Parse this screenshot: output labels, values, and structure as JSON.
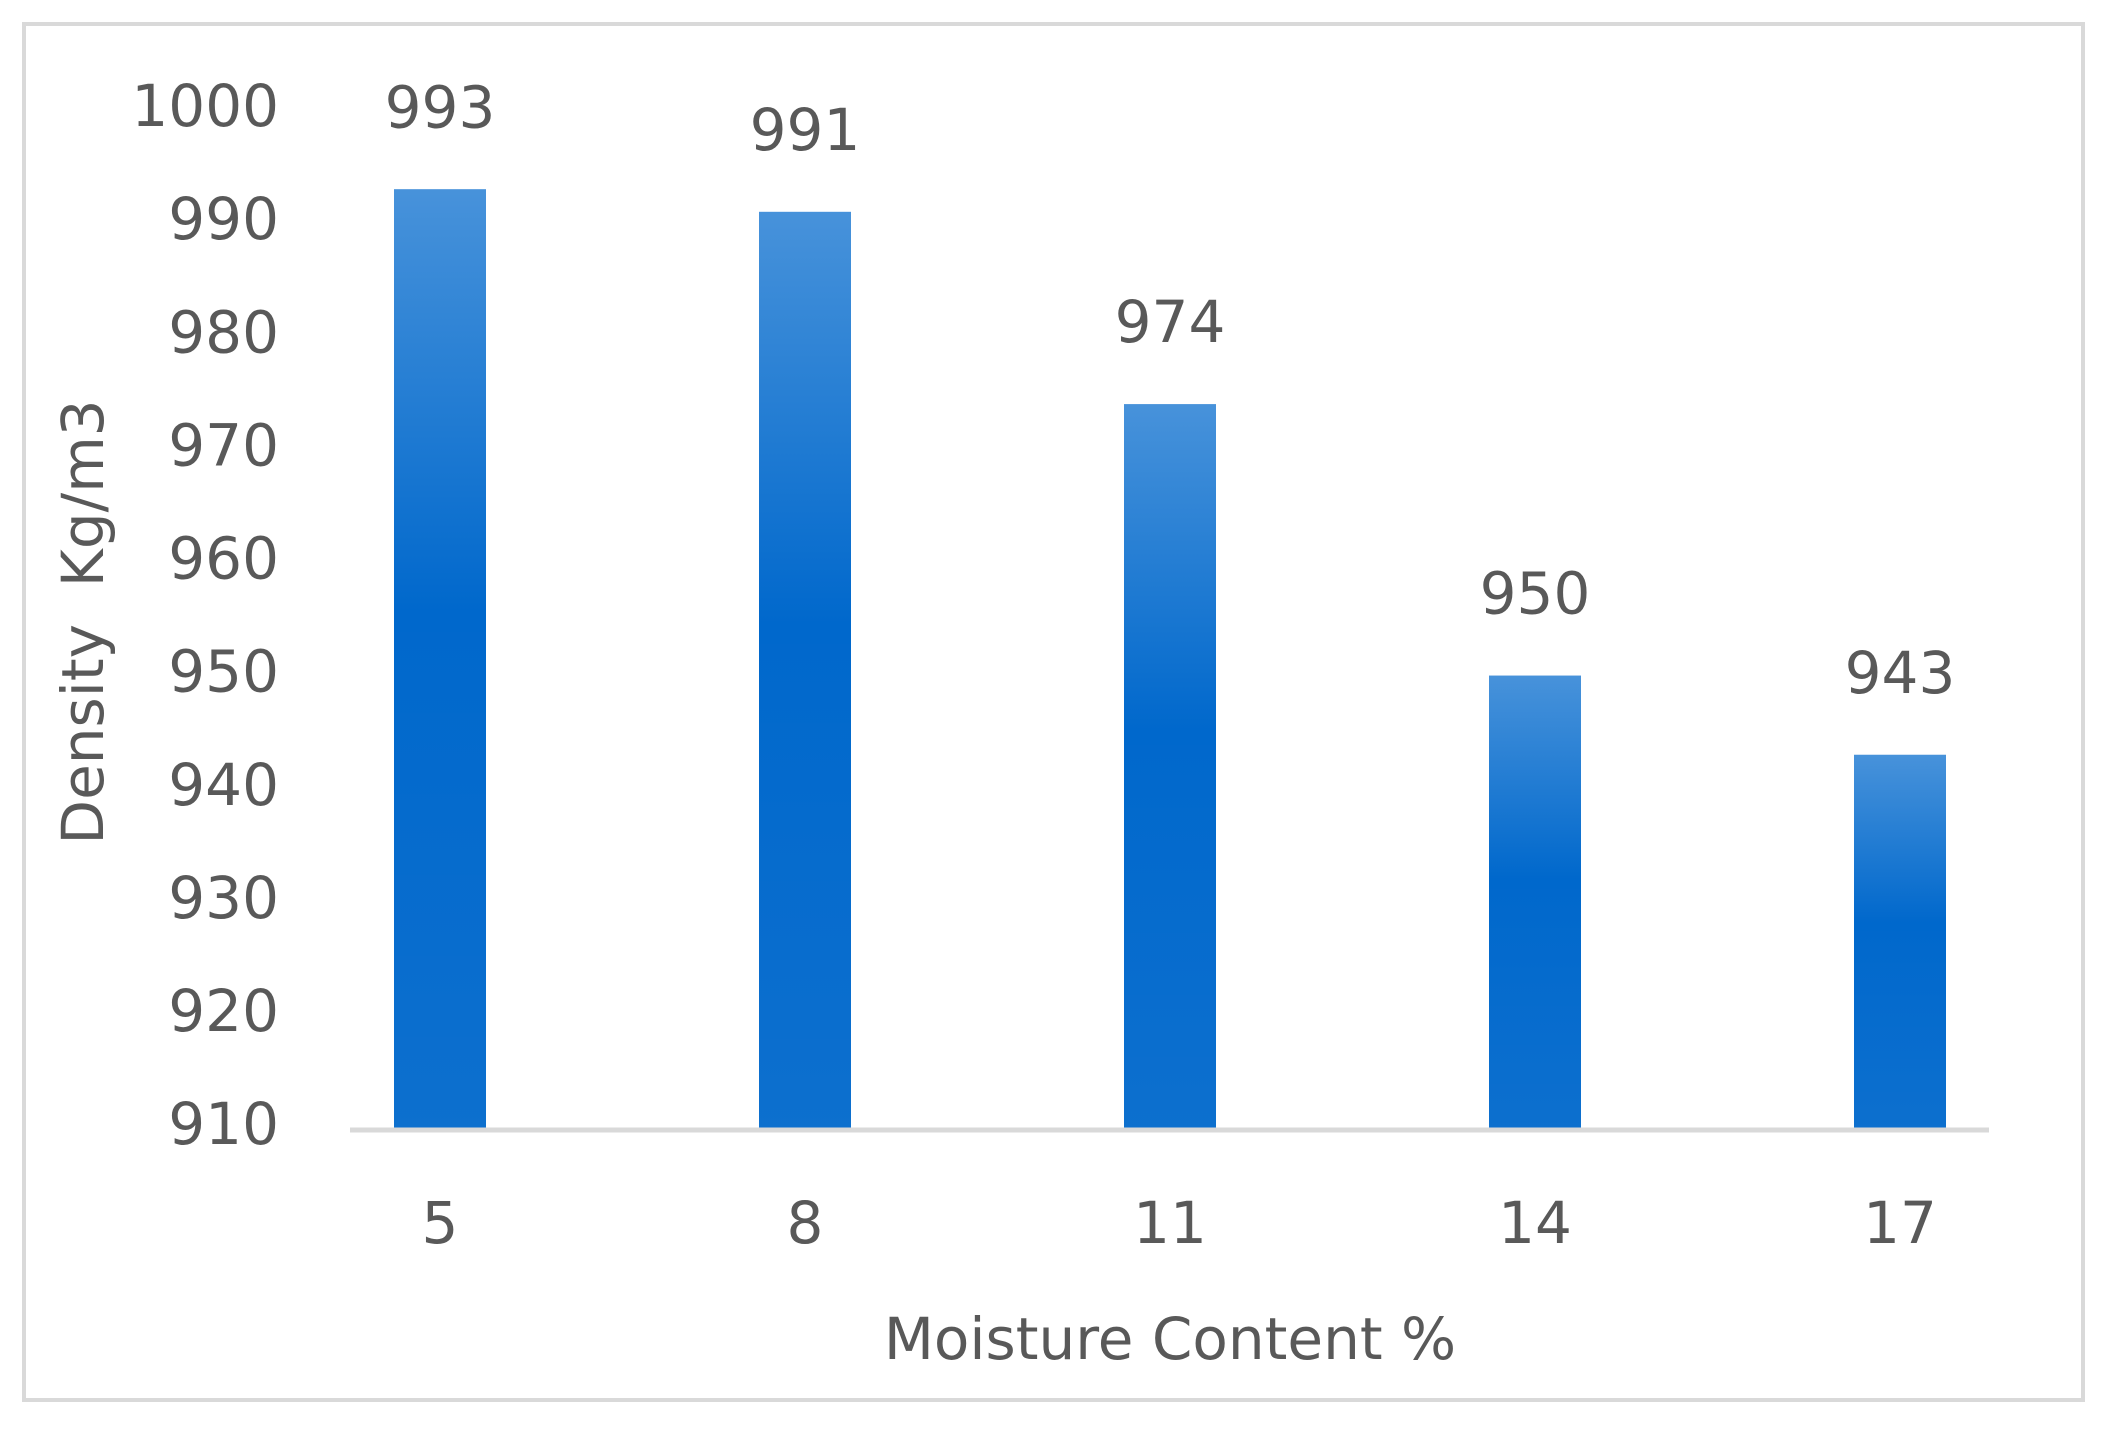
{
  "chart_data": {
    "type": "bar",
    "x_label": "Moisture Content %",
    "y_label": "Density  Kg/m3",
    "categories": [
      "5",
      "8",
      "11",
      "14",
      "17"
    ],
    "values": [
      993,
      991,
      974,
      950,
      943
    ],
    "color": "#0068cc",
    "ylim": [
      910,
      1000
    ],
    "yticks": [
      910,
      920,
      930,
      940,
      950,
      960,
      970,
      980,
      990,
      1000
    ],
    "grid": false
  }
}
